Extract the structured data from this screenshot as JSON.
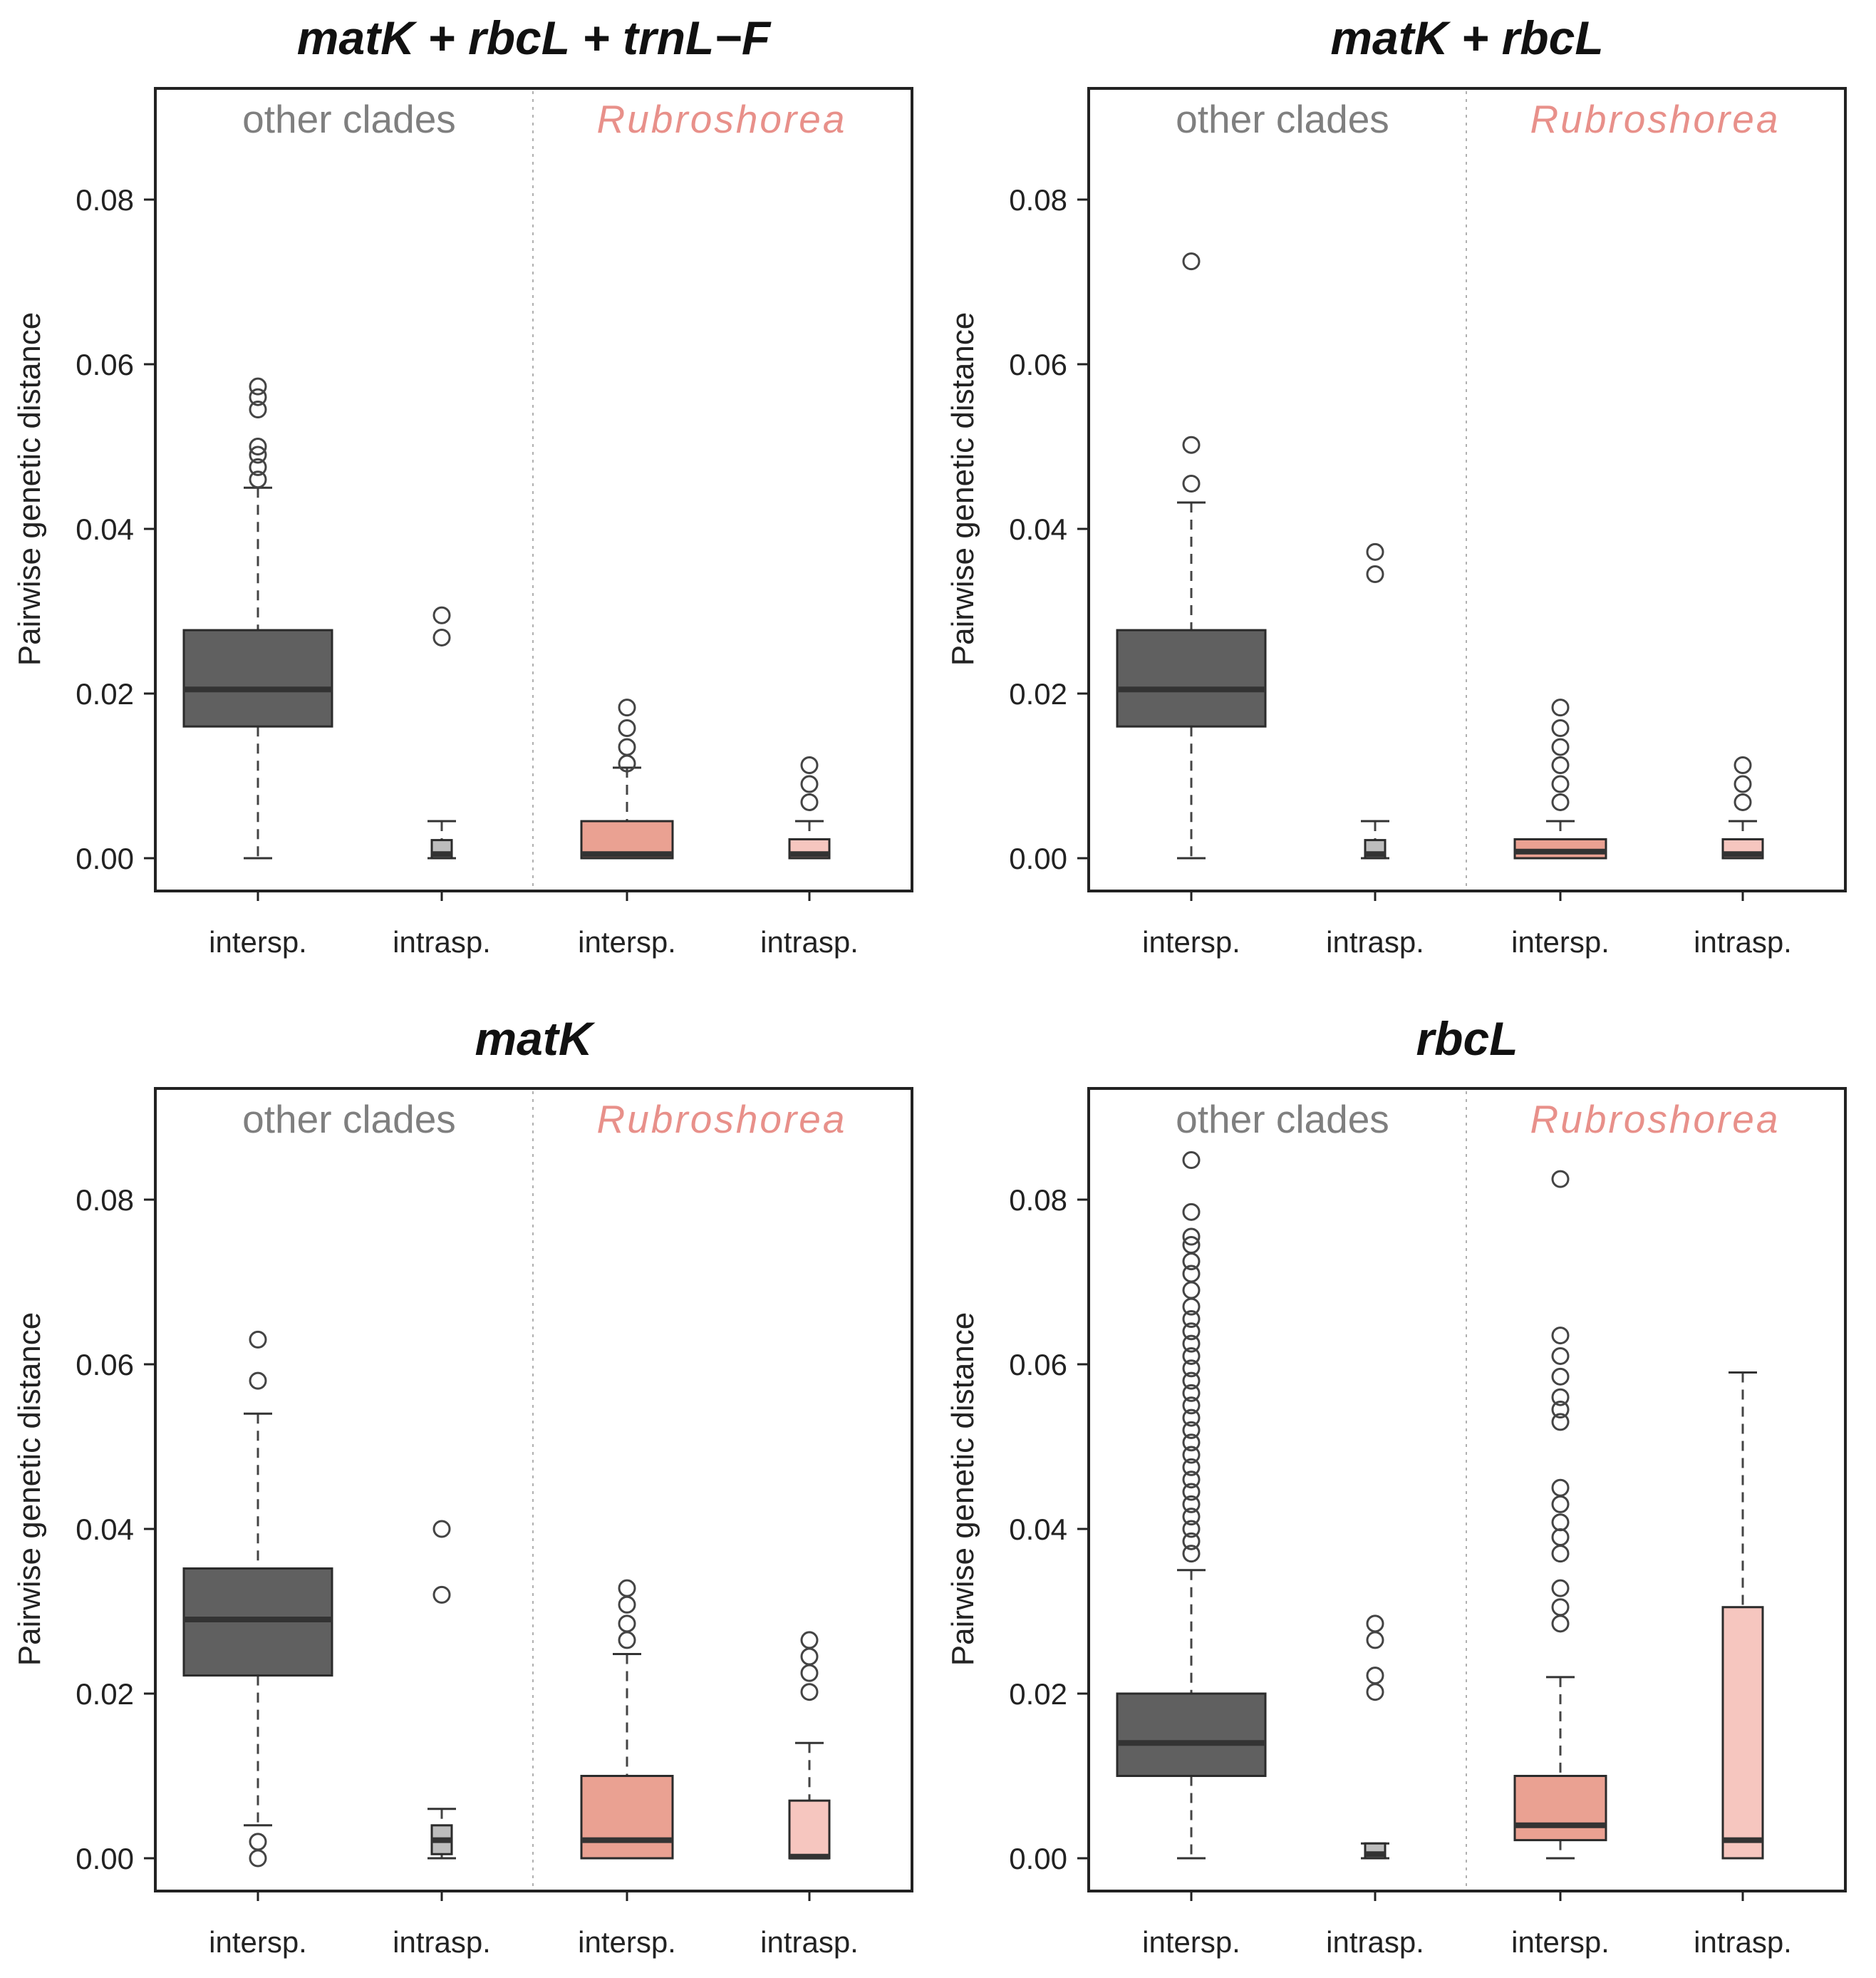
{
  "figure": {
    "y_axis_label": "Pairwise genetic distance",
    "group_labels": [
      "other clades",
      "Rubroshorea"
    ],
    "category_labels": [
      "intersp.",
      "intrasp.",
      "intersp.",
      "intrasp."
    ],
    "colors": {
      "other_inter": "#606060",
      "other_intra": "#bdbdbd",
      "rubro_inter": "#eaa192",
      "rubro_intra": "#f6c6bf",
      "rubro_text": "#e8908a",
      "other_text": "#7f7f7f",
      "median": "#333333",
      "outline": "#2b2b2b"
    }
  },
  "chart_data": [
    {
      "type": "box",
      "title": "matK + rbcL + trnL−F",
      "ylabel": "Pairwise genetic distance",
      "ylim": [
        0,
        0.09
      ],
      "yticks": [
        "0.00",
        "0.02",
        "0.04",
        "0.06",
        "0.08"
      ],
      "groups": [
        "other clades",
        "Rubroshorea"
      ],
      "categories": [
        "intersp.",
        "intrasp.",
        "intersp.",
        "intrasp."
      ],
      "boxes": [
        {
          "group": "other clades",
          "category": "intersp.",
          "whisker_low": 0.0,
          "q1": 0.016,
          "median": 0.0205,
          "q3": 0.0277,
          "whisker_high": 0.045,
          "outliers": [
            0.046,
            0.0475,
            0.049,
            0.05,
            0.0545,
            0.056,
            0.0573
          ]
        },
        {
          "group": "other clades",
          "category": "intrasp.",
          "whisker_low": 0.0,
          "q1": 0.0,
          "median": 0.0005,
          "q3": 0.0022,
          "whisker_high": 0.0045,
          "outliers": [
            0.0268,
            0.0295
          ]
        },
        {
          "group": "Rubroshorea",
          "category": "intersp.",
          "whisker_low": 0.0,
          "q1": 0.0,
          "median": 0.0005,
          "q3": 0.0045,
          "whisker_high": 0.011,
          "outliers": [
            0.0115,
            0.0135,
            0.0158,
            0.0183
          ]
        },
        {
          "group": "Rubroshorea",
          "category": "intrasp.",
          "whisker_low": 0.0,
          "q1": 0.0,
          "median": 0.0005,
          "q3": 0.0023,
          "whisker_high": 0.0045,
          "outliers": [
            0.0068,
            0.009,
            0.0113
          ]
        }
      ]
    },
    {
      "type": "box",
      "title": "matK + rbcL",
      "ylabel": "Pairwise genetic distance",
      "ylim": [
        0,
        0.09
      ],
      "yticks": [
        "0.00",
        "0.02",
        "0.04",
        "0.06",
        "0.08"
      ],
      "groups": [
        "other clades",
        "Rubroshorea"
      ],
      "categories": [
        "intersp.",
        "intrasp.",
        "intersp.",
        "intrasp."
      ],
      "boxes": [
        {
          "group": "other clades",
          "category": "intersp.",
          "whisker_low": 0.0,
          "q1": 0.016,
          "median": 0.0205,
          "q3": 0.0277,
          "whisker_high": 0.0432,
          "outliers": [
            0.0455,
            0.0502,
            0.0725
          ]
        },
        {
          "group": "other clades",
          "category": "intrasp.",
          "whisker_low": 0.0,
          "q1": 0.0,
          "median": 0.0005,
          "q3": 0.0022,
          "whisker_high": 0.0045,
          "outliers": [
            0.0345,
            0.0372
          ]
        },
        {
          "group": "Rubroshorea",
          "category": "intersp.",
          "whisker_low": 0.0,
          "q1": 0.0,
          "median": 0.0008,
          "q3": 0.0023,
          "whisker_high": 0.0045,
          "outliers": [
            0.0068,
            0.009,
            0.0113,
            0.0135,
            0.0158,
            0.0183
          ]
        },
        {
          "group": "Rubroshorea",
          "category": "intrasp.",
          "whisker_low": 0.0,
          "q1": 0.0,
          "median": 0.0005,
          "q3": 0.0023,
          "whisker_high": 0.0045,
          "outliers": [
            0.0068,
            0.009,
            0.0113
          ]
        }
      ]
    },
    {
      "type": "box",
      "title": "matK",
      "ylabel": "Pairwise genetic distance",
      "ylim": [
        0,
        0.09
      ],
      "yticks": [
        "0.00",
        "0.02",
        "0.04",
        "0.06",
        "0.08"
      ],
      "groups": [
        "other clades",
        "Rubroshorea"
      ],
      "categories": [
        "intersp.",
        "intrasp.",
        "intersp.",
        "intrasp."
      ],
      "boxes": [
        {
          "group": "other clades",
          "category": "intersp.",
          "whisker_low": 0.004,
          "q1": 0.0222,
          "median": 0.029,
          "q3": 0.0352,
          "whisker_high": 0.054,
          "outliers": [
            0.0,
            0.002,
            0.058,
            0.063
          ]
        },
        {
          "group": "other clades",
          "category": "intrasp.",
          "whisker_low": 0.0,
          "q1": 0.0005,
          "median": 0.0022,
          "q3": 0.004,
          "whisker_high": 0.006,
          "outliers": [
            0.032,
            0.04
          ]
        },
        {
          "group": "Rubroshorea",
          "category": "intersp.",
          "whisker_low": 0.0,
          "q1": 0.0,
          "median": 0.0022,
          "q3": 0.01,
          "whisker_high": 0.0248,
          "outliers": [
            0.0265,
            0.0285,
            0.0308,
            0.0328
          ]
        },
        {
          "group": "Rubroshorea",
          "category": "intrasp.",
          "whisker_low": 0.0,
          "q1": 0.0,
          "median": 0.0002,
          "q3": 0.007,
          "whisker_high": 0.014,
          "outliers": [
            0.0202,
            0.0225,
            0.0245,
            0.0265
          ]
        }
      ]
    },
    {
      "type": "box",
      "title": "rbcL",
      "ylabel": "Pairwise genetic distance",
      "ylim": [
        0,
        0.09
      ],
      "yticks": [
        "0.00",
        "0.02",
        "0.04",
        "0.06",
        "0.08"
      ],
      "groups": [
        "other clades",
        "Rubroshorea"
      ],
      "categories": [
        "intersp.",
        "intrasp.",
        "intersp.",
        "intrasp."
      ],
      "boxes": [
        {
          "group": "other clades",
          "category": "intersp.",
          "whisker_low": 0.0,
          "q1": 0.01,
          "median": 0.014,
          "q3": 0.02,
          "whisker_high": 0.035,
          "outliers": [
            0.037,
            0.0385,
            0.04,
            0.0415,
            0.043,
            0.0445,
            0.046,
            0.0475,
            0.049,
            0.0505,
            0.052,
            0.0535,
            0.055,
            0.0565,
            0.058,
            0.0595,
            0.061,
            0.0625,
            0.064,
            0.0655,
            0.067,
            0.069,
            0.071,
            0.0725,
            0.0745,
            0.0755,
            0.0785,
            0.0848
          ]
        },
        {
          "group": "other clades",
          "category": "intrasp.",
          "whisker_low": 0.0,
          "q1": 0.0,
          "median": 0.0005,
          "q3": 0.0018,
          "whisker_high": 0.0018,
          "outliers": [
            0.0202,
            0.0222,
            0.0265,
            0.0285
          ]
        },
        {
          "group": "Rubroshorea",
          "category": "intersp.",
          "whisker_low": 0.0,
          "q1": 0.0022,
          "median": 0.004,
          "q3": 0.01,
          "whisker_high": 0.022,
          "outliers": [
            0.0285,
            0.0305,
            0.0328,
            0.037,
            0.039,
            0.0408,
            0.043,
            0.045,
            0.053,
            0.0545,
            0.056,
            0.0585,
            0.061,
            0.0635,
            0.0825
          ]
        },
        {
          "group": "Rubroshorea",
          "category": "intrasp.",
          "whisker_low": 0.0,
          "q1": 0.0,
          "median": 0.0022,
          "q3": 0.0305,
          "whisker_high": 0.059,
          "outliers": []
        }
      ]
    }
  ]
}
